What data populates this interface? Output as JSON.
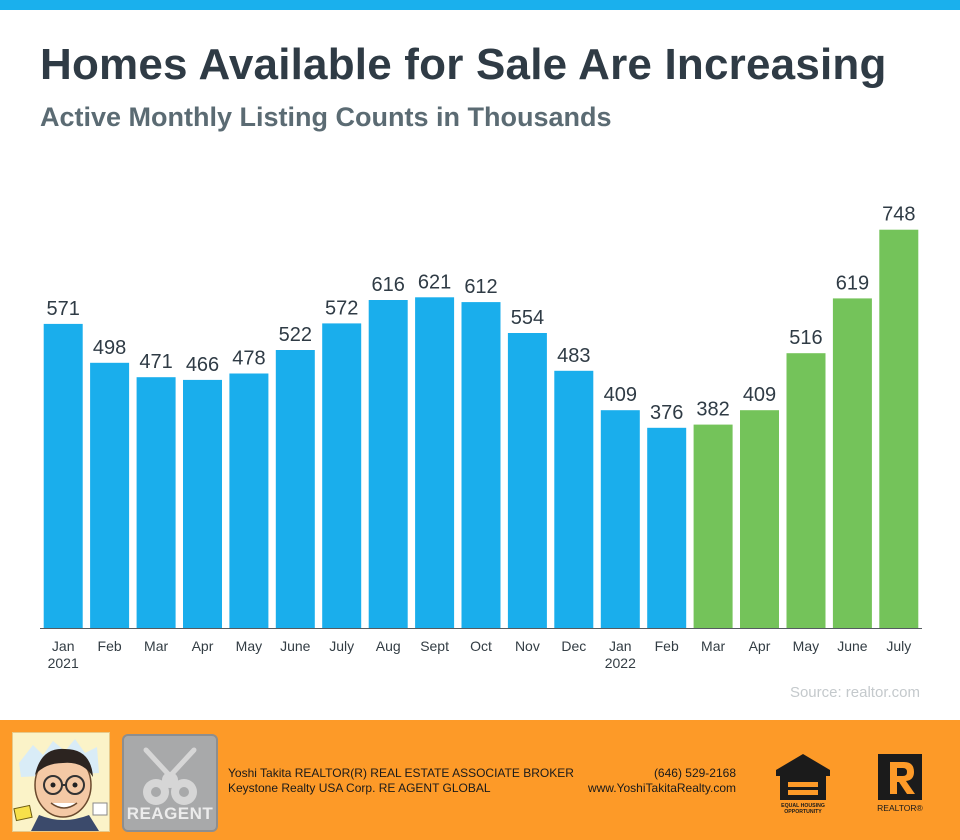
{
  "title": "Homes Available for Sale Are Increasing",
  "subtitle": "Active Monthly Listing Counts in Thousands",
  "source": "Source: realtor.com",
  "colors": {
    "top_bar": "#1ab0ed",
    "bar_blue": "#1aaeec",
    "bar_green": "#74c35a",
    "footer": "#fd9a28"
  },
  "chart_data": {
    "type": "bar",
    "title": "Homes Available for Sale Are Increasing",
    "subtitle": "Active Monthly Listing Counts in Thousands",
    "xlabel": "",
    "ylabel": "",
    "ylim": [
      0,
      800
    ],
    "grid": false,
    "categories": [
      "Jan 2021",
      "Feb",
      "Mar",
      "Apr",
      "May",
      "June",
      "July",
      "Aug",
      "Sept",
      "Oct",
      "Nov",
      "Dec",
      "Jan 2022",
      "Feb",
      "Mar",
      "Apr",
      "May",
      "June",
      "July"
    ],
    "tick_labels": [
      [
        "Jan",
        "2021"
      ],
      [
        "Feb"
      ],
      [
        "Mar"
      ],
      [
        "Apr"
      ],
      [
        "May"
      ],
      [
        "June"
      ],
      [
        "July"
      ],
      [
        "Aug"
      ],
      [
        "Sept"
      ],
      [
        "Oct"
      ],
      [
        "Nov"
      ],
      [
        "Dec"
      ],
      [
        "Jan",
        "2022"
      ],
      [
        "Feb"
      ],
      [
        "Mar"
      ],
      [
        "Apr"
      ],
      [
        "May"
      ],
      [
        "June"
      ],
      [
        "July"
      ]
    ],
    "values": [
      571,
      498,
      471,
      466,
      478,
      522,
      572,
      616,
      621,
      612,
      554,
      483,
      409,
      376,
      382,
      409,
      516,
      619,
      748
    ],
    "bar_colors": [
      "blue",
      "blue",
      "blue",
      "blue",
      "blue",
      "blue",
      "blue",
      "blue",
      "blue",
      "blue",
      "blue",
      "blue",
      "blue",
      "blue",
      "green",
      "green",
      "green",
      "green",
      "green"
    ]
  },
  "footer": {
    "agent_line": "Yoshi Takita REALTOR(R) REAL ESTATE ASSOCIATE BROKER",
    "phone": "(646) 529-2168",
    "company_line": "Keystone Realty USA Corp.  RE AGENT GLOBAL",
    "website": "www.YoshiTakitaRealty.com",
    "reagent_logo_text": "REAGENT",
    "equal_housing_text": "EQUAL HOUSING OPPORTUNITY",
    "realtor_text": "REALTOR®"
  }
}
